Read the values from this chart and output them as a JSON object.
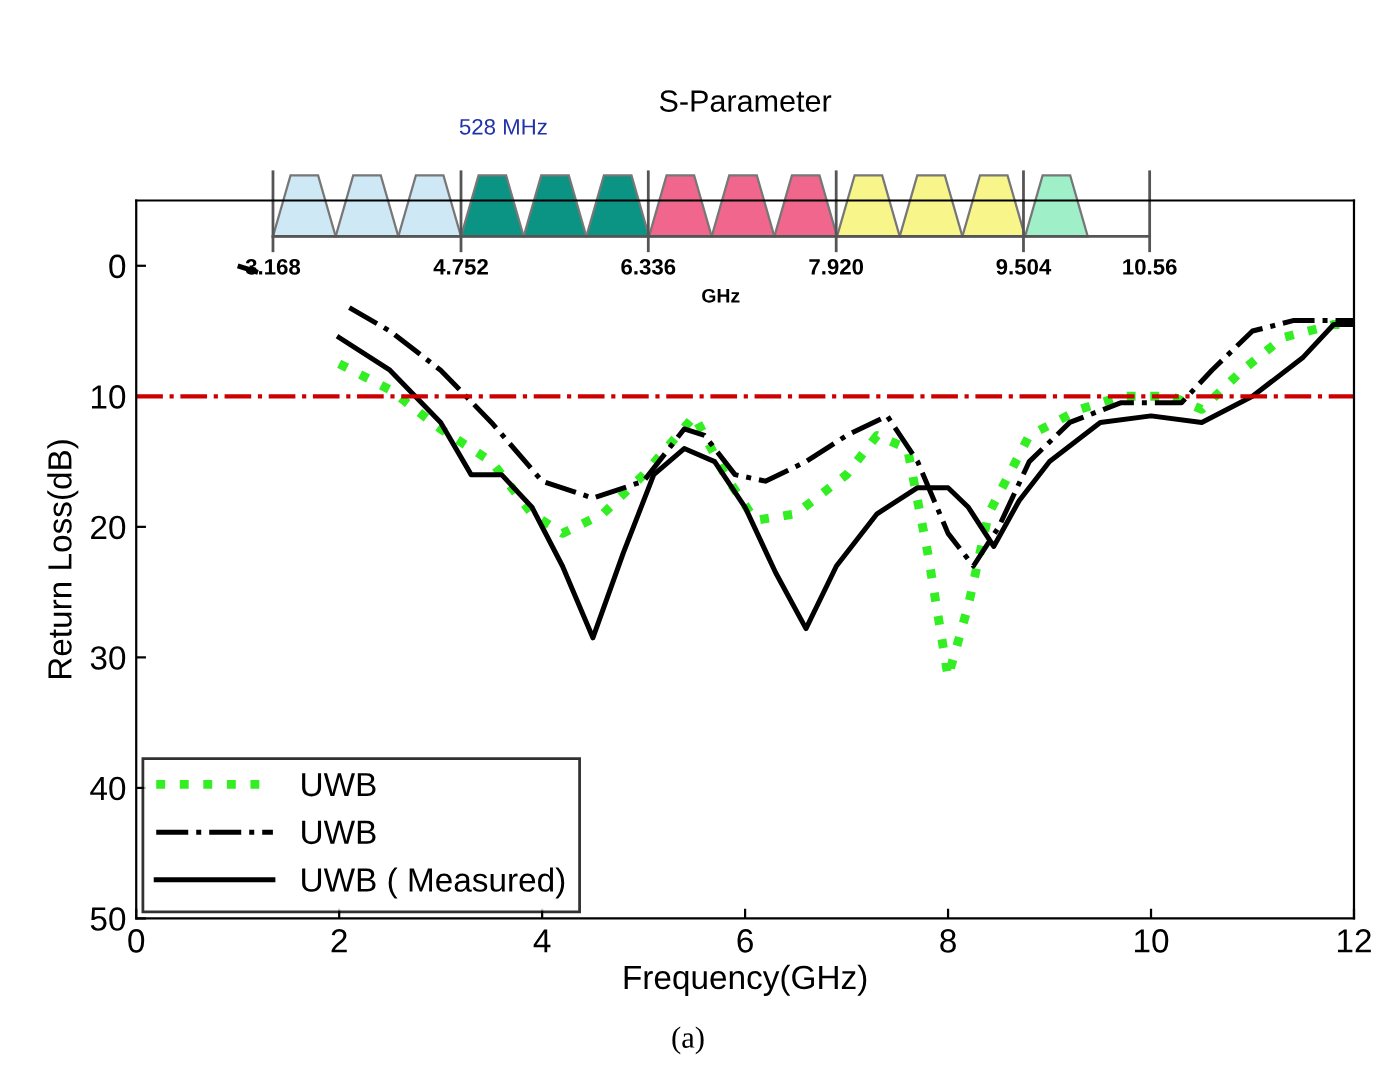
{
  "chart_data": {
    "type": "line",
    "title": "S-Parameter",
    "xlabel": "Frequency(GHz)",
    "ylabel": "Return Loss(dB)",
    "xlim": [
      0,
      12
    ],
    "xticks": [
      0,
      2,
      4,
      6,
      8,
      10,
      12
    ],
    "ylim": [
      50,
      -5
    ],
    "yticks": [
      0,
      10,
      20,
      30,
      40,
      50
    ],
    "grid": false,
    "legend": "bottom left",
    "ref_lines": [
      {
        "axis": "y",
        "value": 10,
        "color": "#cc0000",
        "line_style": "dashdot"
      }
    ],
    "series": [
      {
        "name": "UWB",
        "color": "#33ee22",
        "line_style": "dotted",
        "x": [
          2,
          2.5,
          3,
          3.5,
          3.9,
          4.2,
          4.6,
          5,
          5.5,
          5.8,
          6.1,
          6.5,
          7,
          7.3,
          7.6,
          7.8,
          8.0,
          8.2,
          8.4,
          8.8,
          9.3,
          9.7,
          10.2,
          10.5,
          10.9,
          11.3,
          11.8,
          12
        ],
        "values": [
          7.5,
          9.5,
          12.5,
          15,
          19,
          20.5,
          19,
          16,
          11.5,
          16,
          19.5,
          19,
          16,
          13,
          14,
          22,
          31.5,
          26,
          19,
          13,
          11,
          10,
          10,
          11,
          8,
          5.5,
          4.5,
          4.5
        ]
      },
      {
        "name": "UWB",
        "color": "#000000",
        "line_style": "dashdot",
        "x": [
          1.0,
          1.2,
          1.6,
          2.1,
          2.5,
          3,
          3.5,
          4,
          4.5,
          5,
          5.4,
          5.6,
          5.9,
          6.2,
          6.6,
          7.0,
          7.4,
          7.7,
          8.0,
          8.25,
          8.5,
          8.8,
          9.2,
          9.7,
          10.3,
          10.6,
          11,
          11.4,
          12
        ],
        "values": [
          0,
          0.5,
          null,
          3.2,
          5,
          8,
          12,
          16.5,
          17.8,
          16.5,
          12.5,
          13,
          16,
          16.5,
          15,
          13,
          11.5,
          15,
          20.5,
          23,
          20,
          15,
          12,
          10.5,
          10.5,
          8,
          5,
          4.2,
          4.2
        ]
      },
      {
        "name": "UWB ( Measured)",
        "color": "#000000",
        "line_style": "solid",
        "x": [
          2,
          2.5,
          3,
          3.3,
          3.6,
          3.9,
          4.2,
          4.5,
          4.8,
          5.1,
          5.4,
          5.7,
          6.0,
          6.3,
          6.6,
          6.9,
          7.3,
          7.7,
          8.0,
          8.2,
          8.45,
          8.7,
          9.0,
          9.5,
          10,
          10.5,
          11,
          11.5,
          11.8,
          12
        ],
        "values": [
          5.5,
          8,
          12,
          16,
          16,
          18.5,
          23,
          28.5,
          22,
          16,
          14,
          15,
          18.5,
          23.5,
          27.8,
          23,
          19,
          17,
          17,
          18.5,
          21.5,
          18,
          15,
          12,
          11.5,
          12,
          10,
          7,
          4.5,
          4.5
        ]
      }
    ],
    "annotations": [
      "3.168",
      "4.752",
      "6.336",
      "7.920",
      "9.504",
      "10.56",
      "GHz",
      "528 MHz",
      "(a)"
    ]
  }
}
